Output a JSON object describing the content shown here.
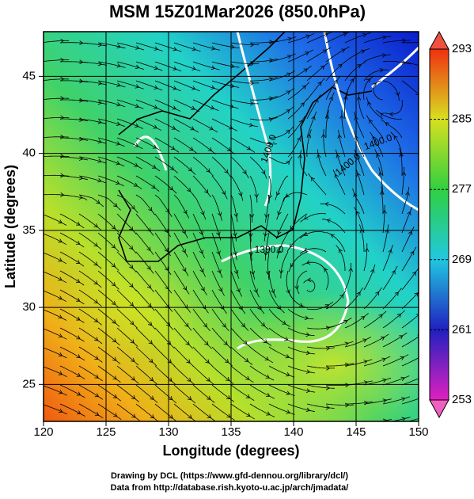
{
  "title": "MSM 15Z01Mar2026 (850.0hPa)",
  "x_axis": {
    "label": "Longitude (degrees)",
    "lim": [
      120,
      150
    ],
    "ticks": [
      120,
      125,
      130,
      135,
      140,
      145,
      150
    ]
  },
  "y_axis": {
    "label": "Latitude  (degrees)",
    "lim": [
      22.6,
      47.9
    ],
    "ticks": [
      25,
      30,
      35,
      40,
      45
    ]
  },
  "colorbar": {
    "lim": [
      253,
      293
    ],
    "ticks": [
      253,
      261,
      269,
      277,
      285,
      293
    ]
  },
  "contour_labels": [
    "1400.0",
    "1400.0",
    "1400.0",
    "1390.0"
  ],
  "credits": [
    "Drawing by DCL (https://www.gfd-dennou.org/library/dcl/)",
    "Data from http://database.rish.kyoto-u.ac.jp/arch/jmadata/"
  ]
}
